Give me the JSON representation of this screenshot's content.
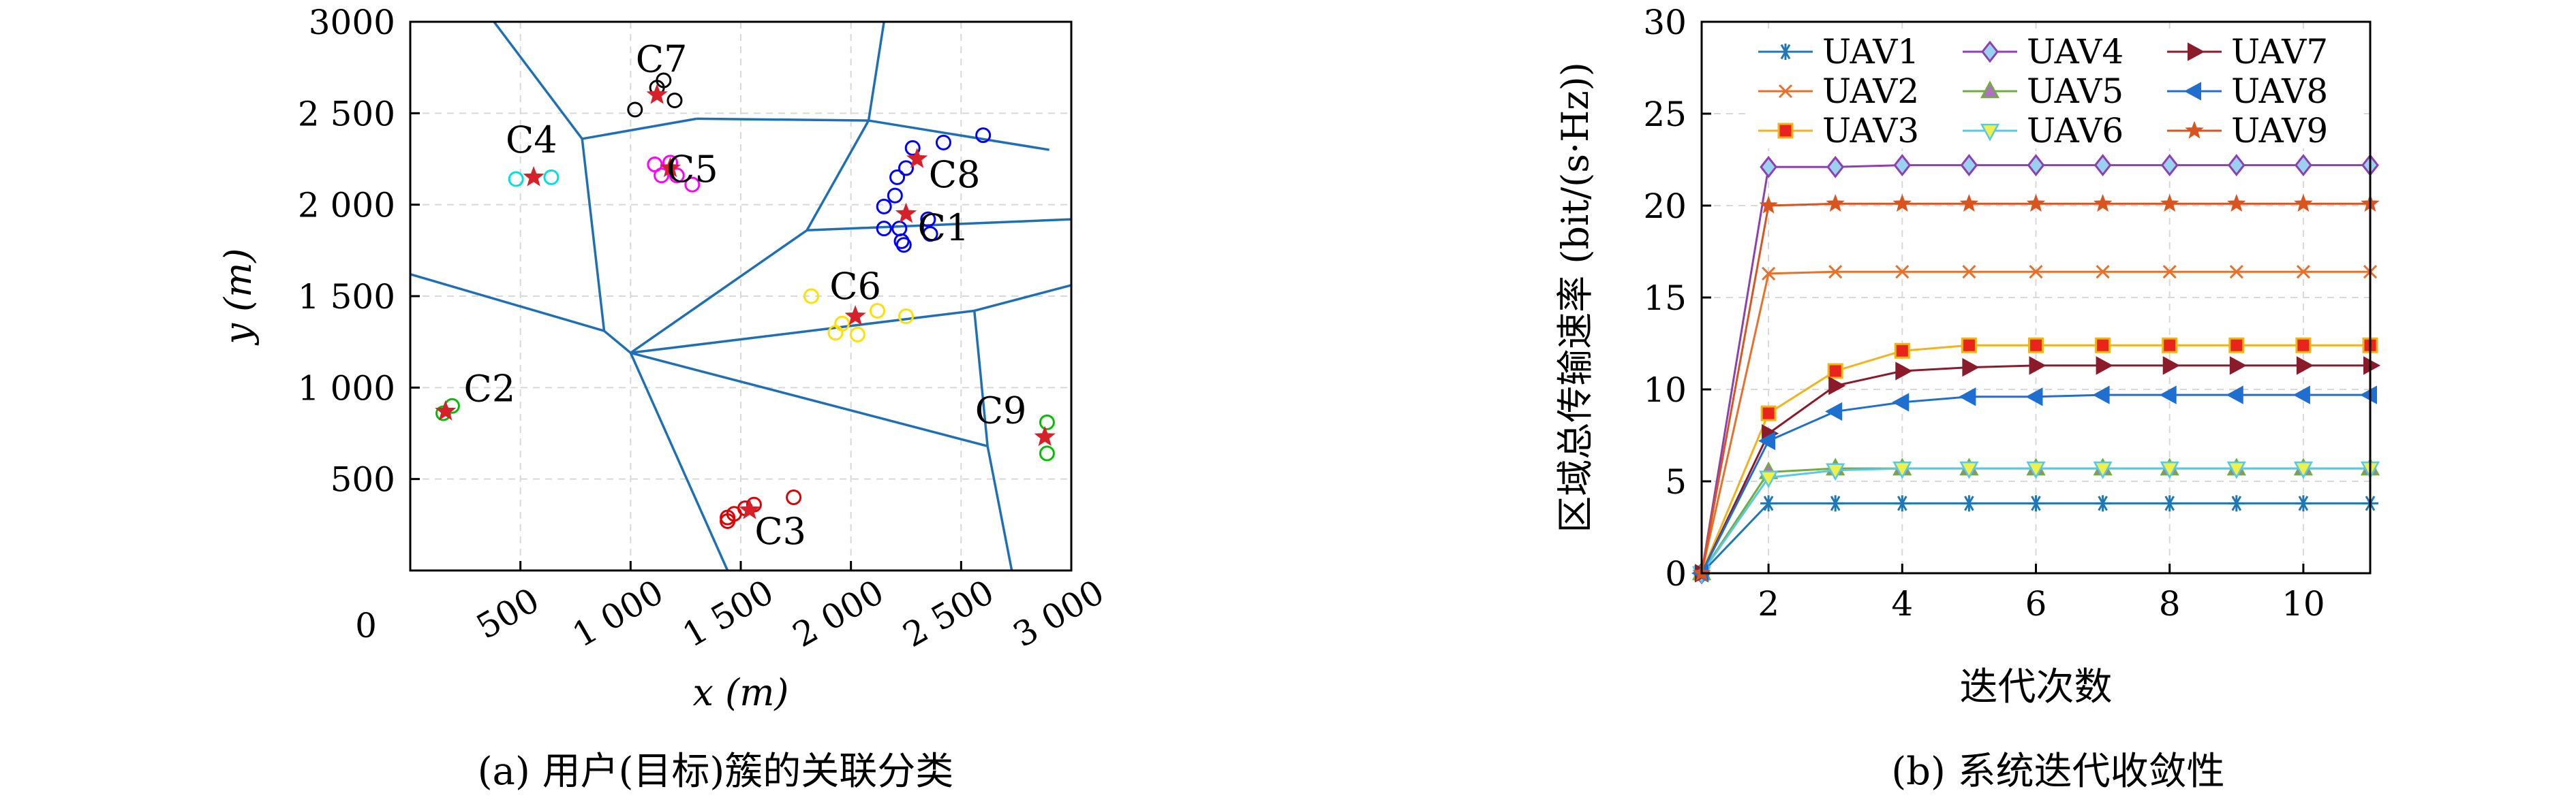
{
  "chart_data": [
    {
      "type": "scatter",
      "xlabel": "x (m)",
      "ylabel": "y (m)",
      "xlim": [
        0,
        3000
      ],
      "ylim": [
        0,
        3000
      ],
      "xticks": [
        500,
        1000,
        1500,
        2000,
        2500,
        3000
      ],
      "xtick_labels": [
        "500",
        "1 000",
        "1 500",
        "2 000",
        "2 500",
        "3 000"
      ],
      "yticks": [
        500,
        1000,
        1500,
        2000,
        2500,
        3000
      ],
      "ytick_labels": [
        "500",
        "1 000",
        "1 500",
        "2 000",
        "2 500",
        "3000"
      ],
      "origin_label": "0",
      "grid": true,
      "clusters": [
        {
          "name": "C1",
          "color": "#0000ff",
          "center": [
            2250,
            1950
          ],
          "label_at": [
            2420,
            1880
          ],
          "points": [
            [
              2150,
              1990
            ],
            [
              2150,
              1870
            ],
            [
              2200,
              2050
            ],
            [
              2220,
              1870
            ],
            [
              2230,
              1800
            ],
            [
              2240,
              1780
            ],
            [
              2210,
              2150
            ],
            [
              2250,
              2200
            ],
            [
              2280,
              2310
            ],
            [
              2350,
              1920
            ],
            [
              2360,
              1840
            ],
            [
              2420,
              2340
            ],
            [
              2600,
              2380
            ]
          ]
        },
        {
          "name": "C2",
          "color": "#00c000",
          "center": [
            160,
            870
          ],
          "label_at": [
            360,
            1000
          ],
          "points": [
            [
              150,
              860
            ],
            [
              190,
              900
            ]
          ]
        },
        {
          "name": "C3",
          "color": "#e00000",
          "center": [
            1540,
            330
          ],
          "label_at": [
            1680,
            220
          ],
          "points": [
            [
              1440,
              290
            ],
            [
              1440,
              270
            ],
            [
              1470,
              310
            ],
            [
              1520,
              340
            ],
            [
              1560,
              360
            ],
            [
              1740,
              400
            ]
          ]
        },
        {
          "name": "C4",
          "color": "#00e0e0",
          "center": [
            560,
            2150
          ],
          "label_at": [
            550,
            2360
          ],
          "points": [
            [
              480,
              2140
            ],
            [
              640,
              2150
            ]
          ]
        },
        {
          "name": "C5",
          "color": "#ff00ff",
          "center": [
            1180,
            2200
          ],
          "label_at": [
            1280,
            2200
          ],
          "points": [
            [
              1110,
              2220
            ],
            [
              1140,
              2160
            ],
            [
              1210,
              2160
            ],
            [
              1280,
              2110
            ],
            [
              1180,
              2230
            ]
          ]
        },
        {
          "name": "C6",
          "color": "#ffe000",
          "center": [
            2020,
            1390
          ],
          "label_at": [
            2020,
            1560
          ],
          "points": [
            [
              1820,
              1500
            ],
            [
              1930,
              1300
            ],
            [
              1960,
              1350
            ],
            [
              2030,
              1290
            ],
            [
              2250,
              1390
            ],
            [
              2120,
              1420
            ]
          ]
        },
        {
          "name": "C7",
          "color": "#000000",
          "center": [
            1120,
            2600
          ],
          "label_at": [
            1140,
            2800
          ],
          "points": [
            [
              1020,
              2520
            ],
            [
              1120,
              2640
            ],
            [
              1150,
              2680
            ],
            [
              1200,
              2570
            ]
          ]
        },
        {
          "name": "C8",
          "color": "#0000ff",
          "center": [
            2300,
            2250
          ],
          "label_at": [
            2470,
            2170
          ],
          "points": []
        },
        {
          "name": "C9",
          "color": "#00c000",
          "center": [
            2880,
            730
          ],
          "label_at": [
            2680,
            880
          ],
          "points": [
            [
              2890,
              810
            ],
            [
              2890,
              640
            ]
          ]
        }
      ],
      "voronoi_edges": [
        [
          [
            380,
            3000
          ],
          [
            780,
            2360
          ]
        ],
        [
          [
            780,
            2360
          ],
          [
            1300,
            2470
          ]
        ],
        [
          [
            1300,
            2470
          ],
          [
            2080,
            2460
          ]
        ],
        [
          [
            2080,
            2460
          ],
          [
            2150,
            3000
          ]
        ],
        [
          [
            780,
            2360
          ],
          [
            880,
            1310
          ]
        ],
        [
          [
            880,
            1310
          ],
          [
            1000,
            1190
          ]
        ],
        [
          [
            0,
            1620
          ],
          [
            880,
            1310
          ]
        ],
        [
          [
            1000,
            1190
          ],
          [
            1800,
            1860
          ]
        ],
        [
          [
            1800,
            1860
          ],
          [
            3000,
            1920
          ]
        ],
        [
          [
            1800,
            1860
          ],
          [
            2080,
            2460
          ]
        ],
        [
          [
            2080,
            2460
          ],
          [
            2900,
            2300
          ]
        ],
        [
          [
            1000,
            1190
          ],
          [
            2560,
            1420
          ]
        ],
        [
          [
            2560,
            1420
          ],
          [
            3000,
            1560
          ]
        ],
        [
          [
            1000,
            1190
          ],
          [
            1440,
            0
          ]
        ],
        [
          [
            1000,
            1190
          ],
          [
            2620,
            680
          ]
        ],
        [
          [
            2620,
            680
          ],
          [
            2730,
            0
          ]
        ],
        [
          [
            2560,
            1420
          ],
          [
            2620,
            680
          ]
        ]
      ]
    },
    {
      "type": "line",
      "xlabel": "迭代次数",
      "ylabel": "区域总传输速率 (bit/(s·Hz))",
      "xlim": [
        1,
        11
      ],
      "ylim": [
        0,
        30
      ],
      "xticks": [
        2,
        4,
        6,
        8,
        10
      ],
      "yticks": [
        0,
        5,
        10,
        15,
        20,
        25,
        30
      ],
      "grid": true,
      "legend": "top-left",
      "x": [
        1,
        2,
        3,
        4,
        5,
        6,
        7,
        8,
        9,
        10,
        11
      ],
      "series": [
        {
          "name": "UAV1",
          "color": "#1f77b4",
          "marker": "asterisk",
          "values": [
            0,
            3.8,
            3.8,
            3.8,
            3.8,
            3.8,
            3.8,
            3.8,
            3.8,
            3.8,
            3.8
          ]
        },
        {
          "name": "UAV2",
          "color": "#e8702a",
          "marker": "x",
          "values": [
            0,
            16.3,
            16.4,
            16.4,
            16.4,
            16.4,
            16.4,
            16.4,
            16.4,
            16.4,
            16.4
          ]
        },
        {
          "name": "UAV3",
          "color": "#f2b21a",
          "marker": "square",
          "values": [
            0,
            8.7,
            11.0,
            12.1,
            12.4,
            12.4,
            12.4,
            12.4,
            12.4,
            12.4,
            12.4
          ]
        },
        {
          "name": "UAV4",
          "color": "#8e3fb0",
          "marker": "diamond",
          "values": [
            0,
            22.1,
            22.1,
            22.2,
            22.2,
            22.2,
            22.2,
            22.2,
            22.2,
            22.2,
            22.2
          ]
        },
        {
          "name": "UAV5",
          "color": "#6fae38",
          "marker": "triangle-up",
          "values": [
            0,
            5.5,
            5.7,
            5.7,
            5.7,
            5.7,
            5.7,
            5.7,
            5.7,
            5.7,
            5.7
          ]
        },
        {
          "name": "UAV6",
          "color": "#58c8e8",
          "marker": "triangle-down",
          "values": [
            0,
            5.2,
            5.6,
            5.7,
            5.7,
            5.7,
            5.7,
            5.7,
            5.7,
            5.7,
            5.7
          ]
        },
        {
          "name": "UAV7",
          "color": "#8b1a2a",
          "marker": "triangle-right",
          "values": [
            0,
            7.6,
            10.2,
            11.0,
            11.2,
            11.3,
            11.3,
            11.3,
            11.3,
            11.3,
            11.3
          ]
        },
        {
          "name": "UAV8",
          "color": "#1f6fd0",
          "marker": "triangle-left",
          "values": [
            0,
            7.2,
            8.8,
            9.3,
            9.6,
            9.6,
            9.7,
            9.7,
            9.7,
            9.7,
            9.7
          ]
        },
        {
          "name": "UAV9",
          "color": "#d9541e",
          "marker": "star",
          "values": [
            0,
            20.0,
            20.1,
            20.1,
            20.1,
            20.1,
            20.1,
            20.1,
            20.1,
            20.1,
            20.1
          ]
        }
      ]
    }
  ],
  "captions": {
    "a": "(a) 用户(目标)簇的关联分类",
    "b": "(b) 系统迭代收敛性"
  }
}
